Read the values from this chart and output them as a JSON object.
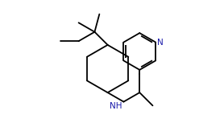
{
  "background": "#ffffff",
  "line_color": "#000000",
  "line_width": 1.3,
  "N_color": "#1a1aaa",
  "NH_color": "#1a1aaa",
  "font_size": 7.5,
  "fig_width": 2.78,
  "fig_height": 1.63,
  "dpi": 100,
  "xlim": [
    0,
    10
  ],
  "ylim": [
    0,
    6
  ]
}
